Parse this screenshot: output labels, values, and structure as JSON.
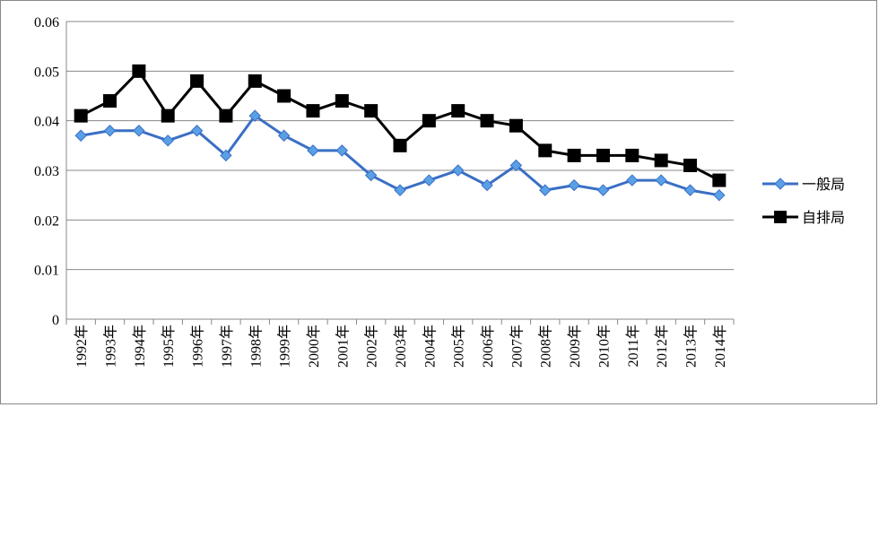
{
  "chart_data": {
    "type": "line",
    "categories": [
      "1992年",
      "1993年",
      "1994年",
      "1995年",
      "1996年",
      "1997年",
      "1998年",
      "1999年",
      "2000年",
      "2001年",
      "2002年",
      "2003年",
      "2004年",
      "2005年",
      "2006年",
      "2007年",
      "2008年",
      "2009年",
      "2010年",
      "2011年",
      "2012年",
      "2013年",
      "2014年"
    ],
    "series": [
      {
        "name": "一般局",
        "color": "#3a6fc4",
        "marker": "diamond",
        "values": [
          0.037,
          0.038,
          0.038,
          0.036,
          0.038,
          0.033,
          0.041,
          0.037,
          0.034,
          0.034,
          0.029,
          0.026,
          0.028,
          0.03,
          0.027,
          0.031,
          0.026,
          0.027,
          0.026,
          0.028,
          0.028,
          0.026,
          0.025
        ]
      },
      {
        "name": "自排局",
        "color": "#000000",
        "marker": "square",
        "values": [
          0.041,
          0.044,
          0.05,
          0.041,
          0.048,
          0.041,
          0.048,
          0.045,
          0.042,
          0.044,
          0.042,
          0.035,
          0.04,
          0.042,
          0.04,
          0.039,
          0.034,
          0.033,
          0.033,
          0.033,
          0.032,
          0.031,
          0.028
        ]
      }
    ],
    "ylim": [
      0,
      0.06
    ],
    "yticks": [
      0,
      0.01,
      0.02,
      0.03,
      0.04,
      0.05,
      0.06
    ],
    "grid": true,
    "legend": "right"
  }
}
